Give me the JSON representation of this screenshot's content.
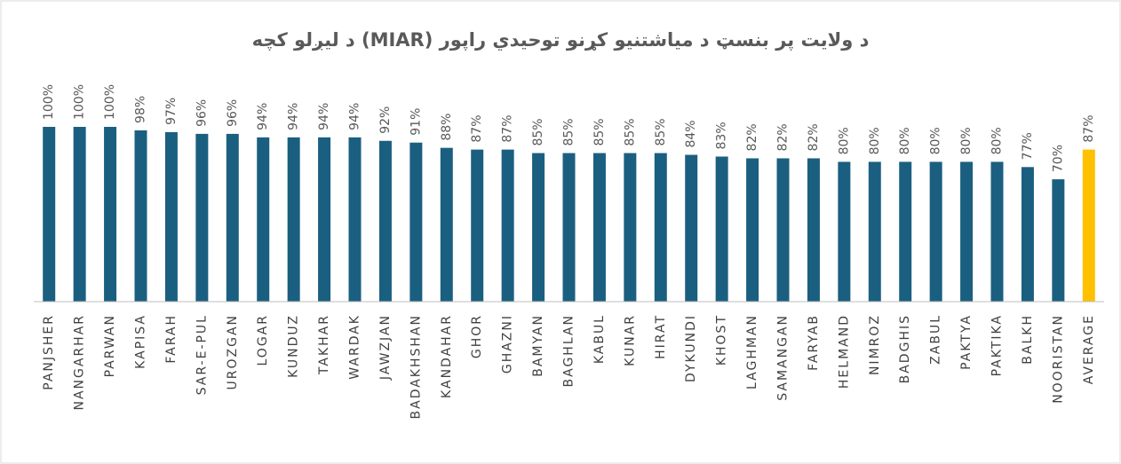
{
  "chart_data": {
    "type": "bar",
    "title": "د ولایت پر بنسټ د میاشتنیو کړنو توحیدي راپور (MIAR) د لیږلو کچه",
    "categories": [
      "PANJSHER",
      "NANGARHAR",
      "PARWAN",
      "KAPISA",
      "FARAH",
      "SAR-E-PUL",
      "UROZGAN",
      "LOGAR",
      "KUNDUZ",
      "TAKHAR",
      "WARDAK",
      "JAWZJAN",
      "BADAKHSHAN",
      "KANDAHAR",
      "GHOR",
      "GHAZNI",
      "BAMYAN",
      "BAGHLAN",
      "KABUL",
      "KUNAR",
      "HIRAT",
      "DYKUNDI",
      "KHOST",
      "LAGHMAN",
      "SAMANGAN",
      "FARYAB",
      "HELMAND",
      "NIMROZ",
      "BADGHIS",
      "ZABUL",
      "PAKTYA",
      "PAKTIKA",
      "BALKH",
      "NOORISTAN",
      "AVERAGE"
    ],
    "values": [
      100,
      100,
      100,
      98,
      97,
      96,
      96,
      94,
      94,
      94,
      94,
      92,
      91,
      88,
      87,
      87,
      85,
      85,
      85,
      85,
      85,
      84,
      83,
      82,
      82,
      82,
      80,
      80,
      80,
      80,
      80,
      80,
      77,
      70,
      87
    ],
    "value_labels": [
      "100%",
      "100%",
      "100%",
      "98%",
      "97%",
      "96%",
      "96%",
      "94%",
      "94%",
      "94%",
      "94%",
      "92%",
      "91%",
      "88%",
      "87%",
      "87%",
      "85%",
      "85%",
      "85%",
      "85%",
      "85%",
      "84%",
      "83%",
      "82%",
      "82%",
      "82%",
      "80%",
      "80%",
      "80%",
      "80%",
      "80%",
      "80%",
      "77%",
      "70%",
      "87%"
    ],
    "colors": [
      "#1b5f80",
      "#1b5f80",
      "#1b5f80",
      "#1b5f80",
      "#1b5f80",
      "#1b5f80",
      "#1b5f80",
      "#1b5f80",
      "#1b5f80",
      "#1b5f80",
      "#1b5f80",
      "#1b5f80",
      "#1b5f80",
      "#1b5f80",
      "#1b5f80",
      "#1b5f80",
      "#1b5f80",
      "#1b5f80",
      "#1b5f80",
      "#1b5f80",
      "#1b5f80",
      "#1b5f80",
      "#1b5f80",
      "#1b5f80",
      "#1b5f80",
      "#1b5f80",
      "#1b5f80",
      "#1b5f80",
      "#1b5f80",
      "#1b5f80",
      "#1b5f80",
      "#1b5f80",
      "#1b5f80",
      "#1b5f80",
      "#ffc000"
    ],
    "ylim": [
      0,
      100
    ]
  }
}
